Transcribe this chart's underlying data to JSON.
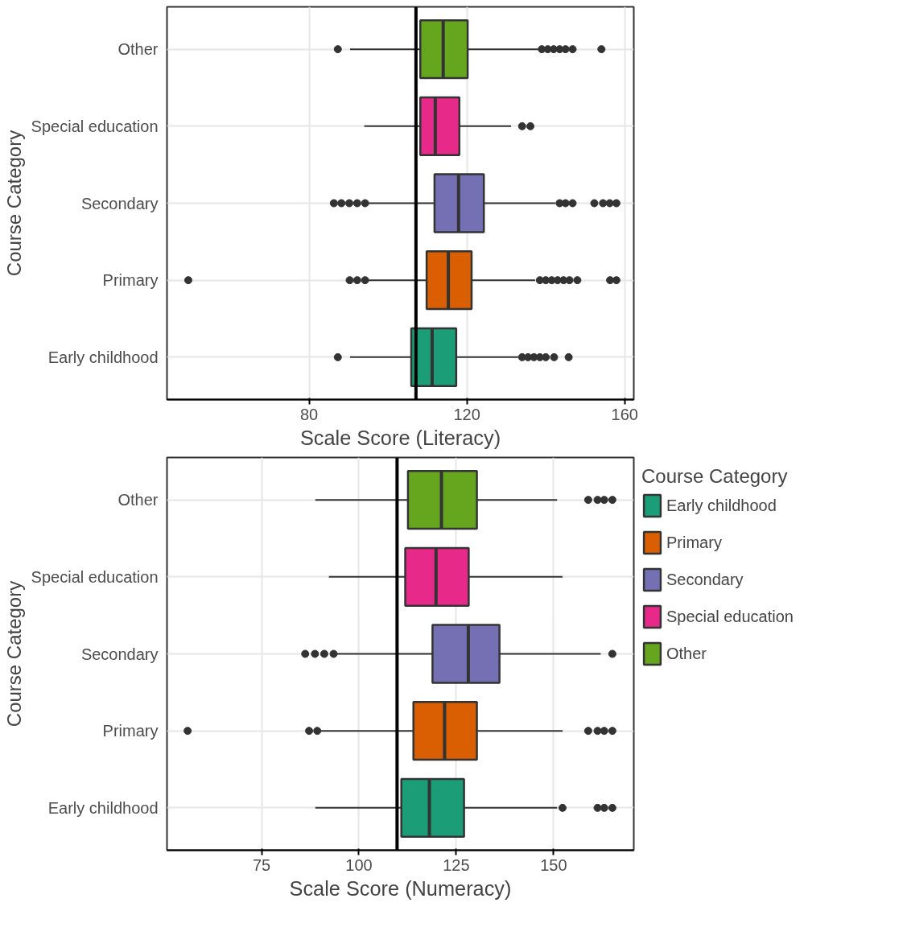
{
  "chart_data": [
    {
      "type": "box",
      "orientation": "horizontal",
      "xlabel": "Scale Score (Literacy)",
      "ylabel": "Course Category",
      "categories": [
        "Other",
        "Special education",
        "Secondary",
        "Primary",
        "Early childhood"
      ],
      "series": [
        {
          "color": "#66a61e",
          "boxes": [
            {
              "low": 90.4,
              "q1": 108.2,
              "median": 114,
              "q3": 120.2,
              "high": 138.1,
              "outliers": [
                87.3,
                139,
                140.5,
                142,
                143.5,
                145,
                146.8,
                154.1
              ]
            },
            null,
            null,
            null,
            null
          ]
        },
        {
          "color": "#e7298a",
          "boxes": [
            null,
            {
              "low": 94,
              "q1": 108.2,
              "median": 112,
              "q3": 118.1,
              "high": 131.2,
              "outliers": [
                134,
                136.1
              ]
            },
            null,
            null,
            null
          ]
        },
        {
          "color": "#7570b3",
          "boxes": [
            null,
            null,
            {
              "low": 94.6,
              "q1": 111.8,
              "median": 117.9,
              "q3": 124.3,
              "high": 142.4,
              "outliers": [
                86.3,
                88.2,
                90.2,
                92.2,
                94.2,
                143.5,
                145,
                146.8,
                152.3,
                154.5,
                156.2,
                157.9
              ]
            },
            null,
            null
          ]
        },
        {
          "color": "#d95f02",
          "boxes": [
            null,
            null,
            null,
            {
              "low": 94.6,
              "q1": 109.8,
              "median": 115.3,
              "q3": 121.2,
              "high": 137.3,
              "outliers": [
                49.4,
                90.3,
                92.2,
                94.2,
                138.5,
                140,
                141.5,
                143,
                144.5,
                146,
                148,
                156.3,
                157.9
              ]
            },
            null
          ]
        },
        {
          "color": "#1b9e77",
          "boxes": [
            null,
            null,
            null,
            null,
            {
              "low": 90.4,
              "q1": 105.9,
              "median": 111.2,
              "q3": 117.3,
              "high": 133,
              "outliers": [
                87.3,
                134,
                135.5,
                137,
                138.5,
                140,
                142.1,
                145.8
              ]
            }
          ]
        }
      ],
      "xlim": [
        44,
        162.3
      ],
      "xticks": [
        80,
        120,
        160
      ],
      "grid": true,
      "ref_lines": [
        {
          "axis": "x",
          "value": 107.1,
          "color": "#000000"
        }
      ]
    },
    {
      "type": "box",
      "orientation": "horizontal",
      "xlabel": "Scale Score (Numeracy)",
      "ylabel": "Course Category",
      "categories": [
        "Other",
        "Special education",
        "Secondary",
        "Primary",
        "Early childhood"
      ],
      "series": [
        {
          "name": "Other",
          "color": "#66a61e",
          "boxes": [
            {
              "low": 88.8,
              "q1": 112.6,
              "median": 121.2,
              "q3": 130.3,
              "high": 150.9,
              "outliers": [
                158.9,
                161.3,
                163,
                165.1
              ]
            },
            null,
            null,
            null,
            null
          ]
        },
        {
          "name": "Special education",
          "color": "#e7298a",
          "boxes": [
            null,
            {
              "low": 92.3,
              "q1": 111.9,
              "median": 119.8,
              "q3": 128.2,
              "high": 152.3
            },
            null,
            null,
            null
          ]
        },
        {
          "name": "Secondary",
          "color": "#7570b3",
          "boxes": [
            null,
            null,
            {
              "low": 94.3,
              "q1": 118.9,
              "median": 128.1,
              "q3": 136.1,
              "high": 162.1,
              "outliers": [
                86.2,
                88.7,
                91.1,
                93.5,
                165.1
              ]
            },
            null,
            null
          ]
        },
        {
          "name": "Primary",
          "color": "#d95f02",
          "boxes": [
            null,
            null,
            null,
            {
              "low": 89.9,
              "q1": 114,
              "median": 122,
              "q3": 130.3,
              "high": 152.3,
              "outliers": [
                56,
                87.2,
                89.3,
                158.9,
                161.3,
                163,
                165.1
              ]
            },
            null
          ]
        },
        {
          "name": "Early childhood",
          "color": "#1b9e77",
          "boxes": [
            null,
            null,
            null,
            null,
            {
              "low": 88.8,
              "q1": 110.9,
              "median": 118.1,
              "q3": 127,
              "high": 150.9,
              "outliers": [
                152.3,
                161.3,
                163,
                165.1
              ]
            }
          ]
        }
      ],
      "xlim": [
        50.7,
        170.6
      ],
      "xticks": [
        75,
        100,
        125,
        150
      ],
      "grid": true,
      "ref_lines": [
        {
          "axis": "x",
          "value": 109.8,
          "color": "#000000"
        }
      ],
      "legend": "right",
      "legend_title": "Course Category"
    }
  ]
}
